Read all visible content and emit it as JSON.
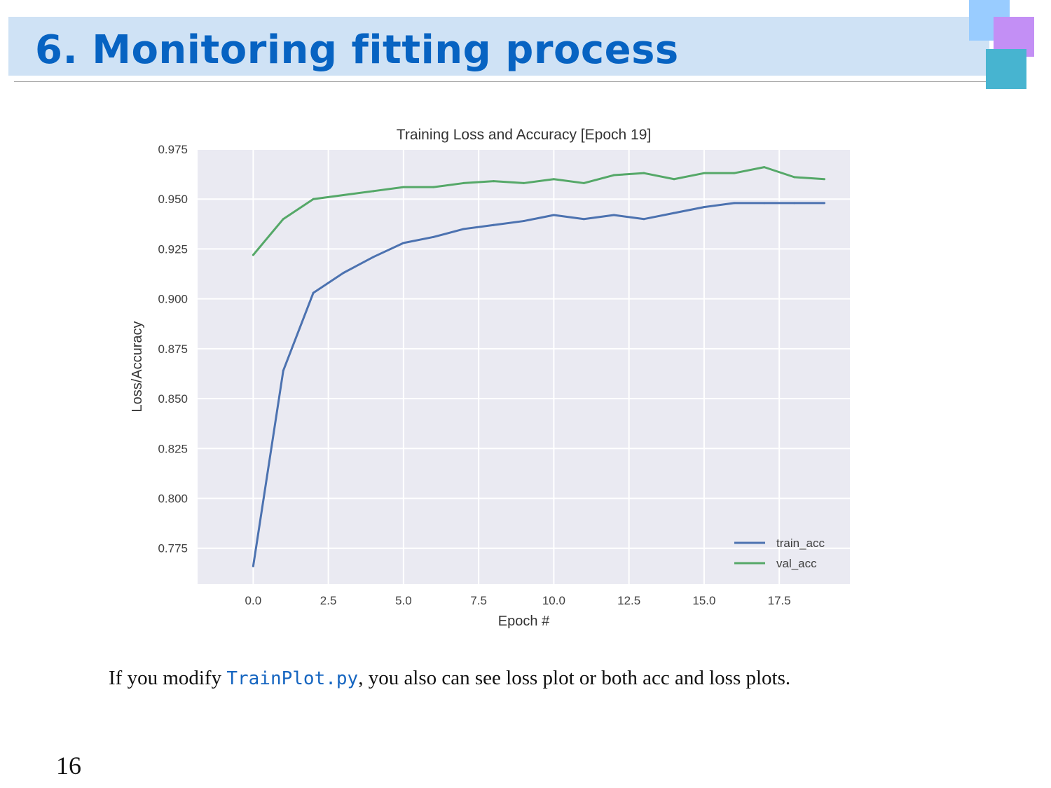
{
  "slide": {
    "title": "6. Monitoring fitting process",
    "page_number": "16"
  },
  "caption": {
    "prefix": "If you modify ",
    "code": "TrainPlot.py",
    "suffix": ", you also can see loss plot or both acc and loss plots."
  },
  "colors": {
    "title_text": "#0763c2",
    "title_band": "#cfe2f5",
    "plot_background": "#eaeaf2",
    "train_acc": "#4c72b0",
    "val_acc": "#55a868",
    "deco_blue": "#99ccff",
    "deco_purple": "#c38ff5",
    "deco_teal": "#47b4d0"
  },
  "chart_data": {
    "type": "line",
    "title": "Training Loss and Accuracy [Epoch 19]",
    "xlabel": "Epoch #",
    "ylabel": "Loss/Accuracy",
    "xlim": [
      -1.85,
      19.85
    ],
    "ylim": [
      0.757,
      0.975
    ],
    "x_ticks": [
      "0.0",
      "2.5",
      "5.0",
      "7.5",
      "10.0",
      "12.5",
      "15.0",
      "17.5"
    ],
    "y_ticks": [
      "0.775",
      "0.800",
      "0.825",
      "0.850",
      "0.875",
      "0.900",
      "0.925",
      "0.950",
      "0.975"
    ],
    "grid": true,
    "legend_position": "lower-right",
    "x": [
      0,
      1,
      2,
      3,
      4,
      5,
      6,
      7,
      8,
      9,
      10,
      11,
      12,
      13,
      14,
      15,
      16,
      17,
      18,
      19
    ],
    "series": [
      {
        "name": "train_acc",
        "color": "#4c72b0",
        "values": [
          0.766,
          0.864,
          0.903,
          0.913,
          0.921,
          0.928,
          0.931,
          0.935,
          0.937,
          0.939,
          0.942,
          0.94,
          0.942,
          0.94,
          0.943,
          0.946,
          0.948,
          0.948,
          0.948,
          0.948
        ]
      },
      {
        "name": "val_acc",
        "color": "#55a868",
        "values": [
          0.922,
          0.94,
          0.95,
          0.952,
          0.954,
          0.956,
          0.956,
          0.958,
          0.959,
          0.958,
          0.96,
          0.958,
          0.962,
          0.963,
          0.96,
          0.963,
          0.963,
          0.966,
          0.961,
          0.96
        ]
      }
    ]
  }
}
